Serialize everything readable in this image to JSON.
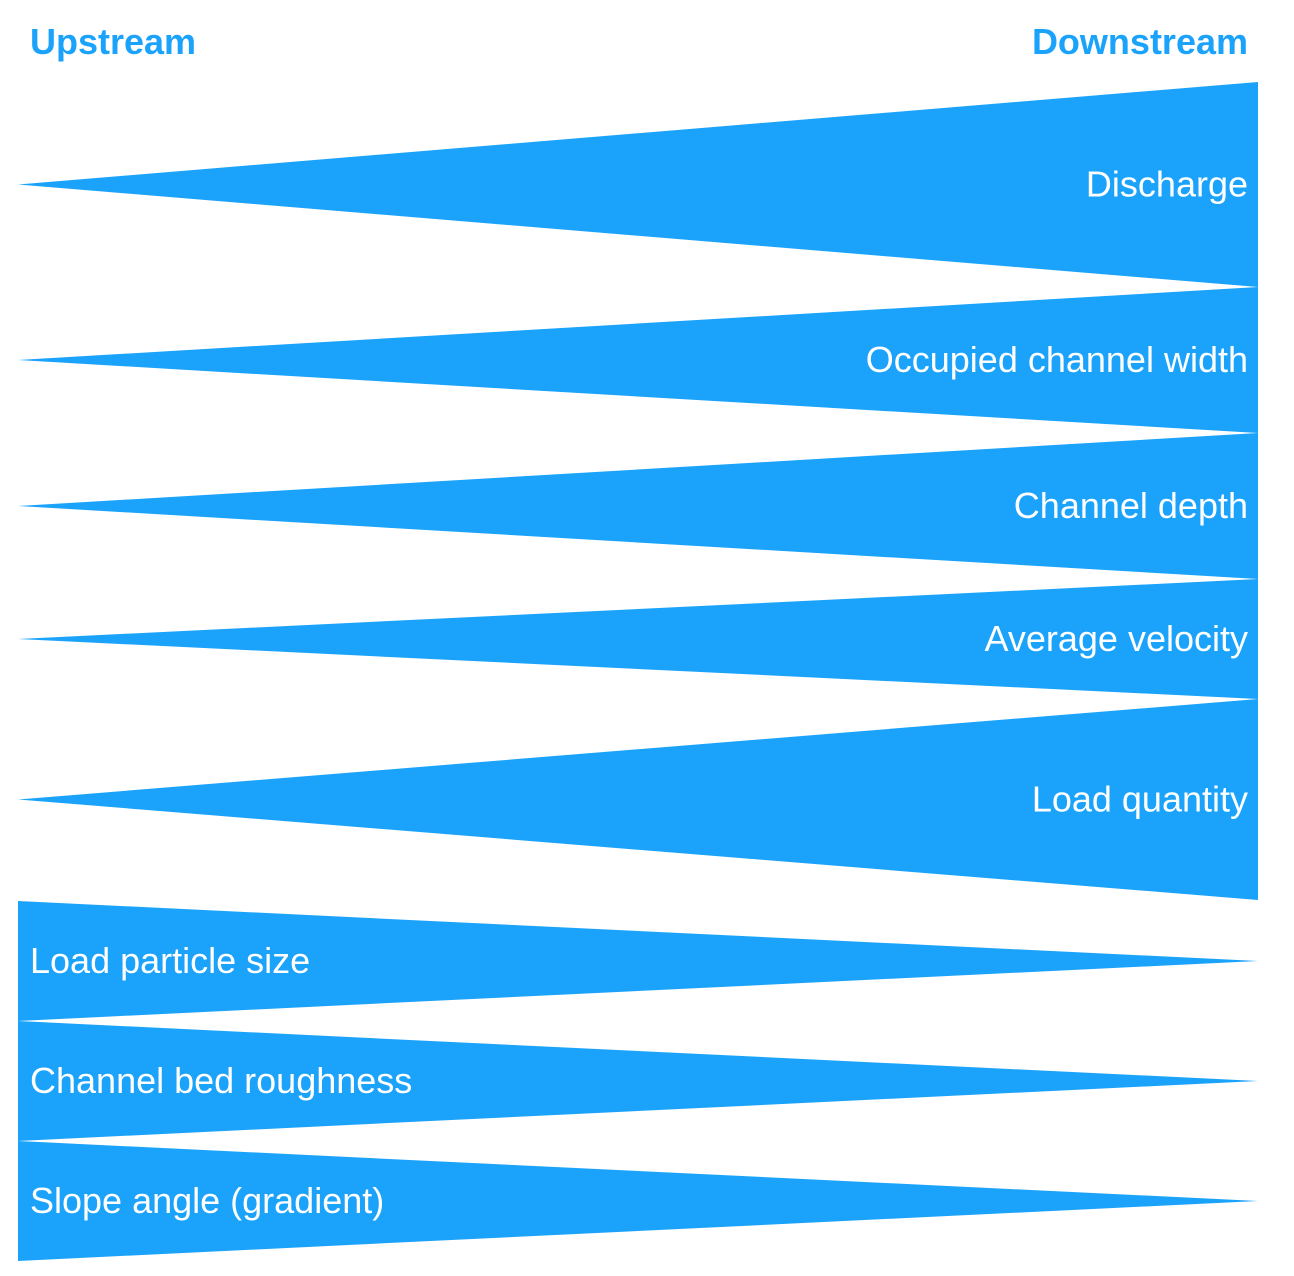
{
  "headers": {
    "upstream": "Upstream",
    "downstream": "Downstream"
  },
  "colors": {
    "accent": "#1ba3fc",
    "label_text": "#ffffff",
    "background": "#ffffff"
  },
  "wedges": [
    {
      "label": "Discharge",
      "direction": "increases-downstream"
    },
    {
      "label": "Occupied channel width",
      "direction": "increases-downstream"
    },
    {
      "label": "Channel depth",
      "direction": "increases-downstream"
    },
    {
      "label": "Average velocity",
      "direction": "increases-downstream"
    },
    {
      "label": "Load quantity",
      "direction": "increases-downstream"
    },
    {
      "label": "Load particle size",
      "direction": "decreases-downstream"
    },
    {
      "label": "Channel bed roughness",
      "direction": "decreases-downstream"
    },
    {
      "label": "Slope angle (gradient)",
      "direction": "decreases-downstream"
    }
  ]
}
